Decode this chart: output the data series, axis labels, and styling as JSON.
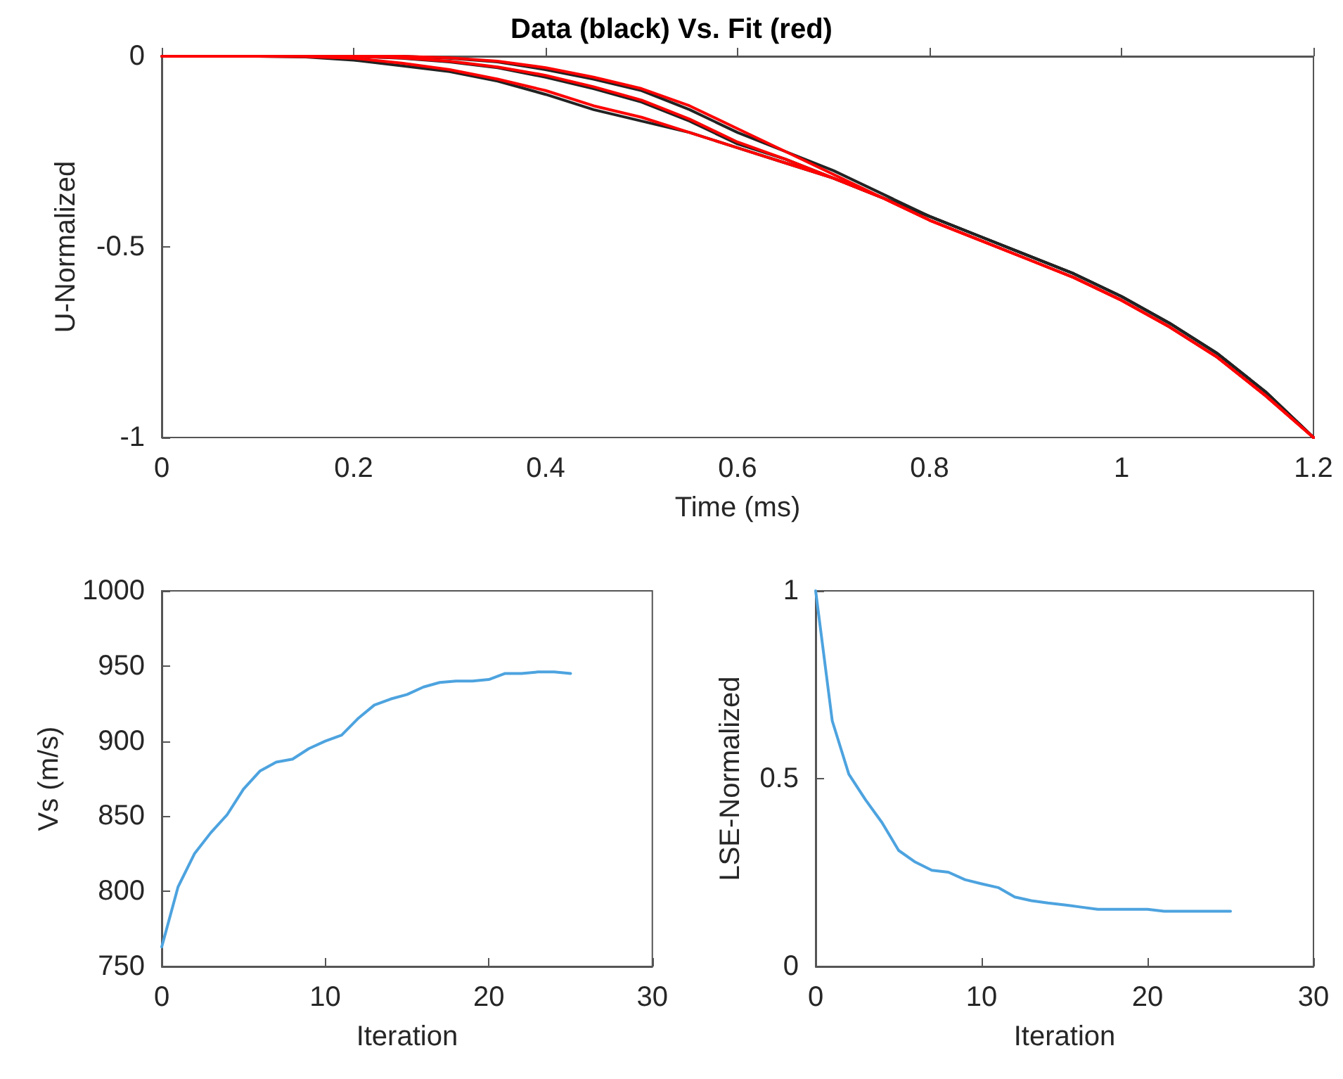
{
  "chart_data": [
    {
      "type": "line",
      "title": "Data (black) Vs. Fit (red)",
      "xlabel": "Time (ms)",
      "ylabel": "U-Normalized",
      "xlim": [
        0,
        1.2
      ],
      "ylim": [
        -1,
        0
      ],
      "xticks": [
        0,
        0.2,
        0.4,
        0.6,
        0.8,
        1,
        1.2
      ],
      "yticks": [
        -1,
        -0.5,
        0
      ],
      "x": [
        0,
        0.05,
        0.1,
        0.15,
        0.2,
        0.25,
        0.3,
        0.35,
        0.4,
        0.45,
        0.5,
        0.55,
        0.6,
        0.65,
        0.7,
        0.75,
        0.8,
        0.85,
        0.9,
        0.95,
        1,
        1.05,
        1.1,
        1.15,
        1.2
      ],
      "series": [
        {
          "color": "#222222",
          "values": [
            0,
            0,
            0,
            0,
            0,
            0,
            -0.005,
            -0.015,
            -0.035,
            -0.06,
            -0.09,
            -0.14,
            -0.2,
            -0.25,
            -0.3,
            -0.36,
            -0.42,
            -0.47,
            -0.52,
            -0.57,
            -0.63,
            -0.7,
            -0.78,
            -0.88,
            -1
          ]
        },
        {
          "color": "#222222",
          "x": [
            0.2,
            0.25,
            0.3,
            0.35,
            0.4,
            0.45,
            0.5,
            0.55,
            0.6,
            0.65,
            0.7,
            0.75,
            0.8,
            0.85,
            0.9,
            0.95,
            1,
            1.05,
            1.1,
            1.15,
            1.2
          ],
          "values": [
            0,
            -0.005,
            -0.015,
            -0.03,
            -0.055,
            -0.085,
            -0.12,
            -0.17,
            -0.23,
            -0.27,
            -0.32,
            -0.37,
            -0.42,
            -0.47,
            -0.52,
            -0.57,
            -0.63,
            -0.7,
            -0.78,
            -0.88,
            -1
          ]
        },
        {
          "color": "#222222",
          "x": [
            0.1,
            0.15,
            0.2,
            0.25,
            0.3,
            0.35,
            0.4,
            0.45,
            0.5,
            0.55,
            0.6,
            0.65,
            0.7,
            0.75,
            0.8,
            0.85,
            0.9,
            0.95,
            1,
            1.05,
            1.1,
            1.15,
            1.2
          ],
          "values": [
            0,
            -0.002,
            -0.01,
            -0.025,
            -0.04,
            -0.065,
            -0.1,
            -0.14,
            -0.17,
            -0.2,
            -0.24,
            -0.28,
            -0.32,
            -0.37,
            -0.42,
            -0.47,
            -0.52,
            -0.57,
            -0.63,
            -0.7,
            -0.78,
            -0.88,
            -1
          ]
        },
        {
          "color": "#ff0000",
          "values": [
            0,
            0,
            0,
            0,
            0,
            0,
            -0.004,
            -0.013,
            -0.03,
            -0.055,
            -0.085,
            -0.13,
            -0.19,
            -0.25,
            -0.31,
            -0.37,
            -0.43,
            -0.48,
            -0.53,
            -0.58,
            -0.64,
            -0.71,
            -0.79,
            -0.89,
            -1
          ]
        },
        {
          "color": "#ff0000",
          "x": [
            0.2,
            0.25,
            0.3,
            0.35,
            0.4,
            0.45,
            0.5,
            0.55,
            0.6,
            0.65,
            0.7,
            0.75,
            0.8,
            0.85,
            0.9,
            0.95,
            1,
            1.05,
            1.1,
            1.15,
            1.2
          ],
          "values": [
            0,
            -0.004,
            -0.013,
            -0.028,
            -0.05,
            -0.08,
            -0.115,
            -0.165,
            -0.225,
            -0.27,
            -0.32,
            -0.37,
            -0.43,
            -0.48,
            -0.53,
            -0.58,
            -0.64,
            -0.71,
            -0.79,
            -0.89,
            -1
          ]
        },
        {
          "color": "#ff0000",
          "x": [
            0.1,
            0.15,
            0.2,
            0.25,
            0.3,
            0.35,
            0.4,
            0.45,
            0.5,
            0.55,
            0.6,
            0.65,
            0.7,
            0.75,
            0.8,
            0.85,
            0.9,
            0.95,
            1,
            1.05,
            1.1,
            1.15,
            1.2
          ],
          "values": [
            0,
            -0.001,
            -0.005,
            -0.018,
            -0.035,
            -0.06,
            -0.09,
            -0.13,
            -0.16,
            -0.2,
            -0.24,
            -0.28,
            -0.32,
            -0.37,
            -0.43,
            -0.48,
            -0.53,
            -0.58,
            -0.64,
            -0.71,
            -0.79,
            -0.89,
            -1
          ]
        }
      ]
    },
    {
      "type": "line",
      "xlabel": "Iteration",
      "ylabel": "Vs (m/s)",
      "xlim": [
        0,
        30
      ],
      "ylim": [
        750,
        1000
      ],
      "xticks": [
        0,
        10,
        20,
        30
      ],
      "yticks": [
        750,
        800,
        850,
        900,
        950,
        1000
      ],
      "x": [
        0,
        1,
        2,
        3,
        4,
        5,
        6,
        7,
        8,
        9,
        10,
        11,
        12,
        13,
        14,
        15,
        16,
        17,
        18,
        19,
        20,
        21,
        22,
        23,
        24,
        25
      ],
      "series": [
        {
          "color": "#4da3df",
          "values": [
            763,
            803,
            825,
            839,
            851,
            868,
            880,
            886,
            888,
            895,
            900,
            904,
            915,
            924,
            928,
            931,
            936,
            939,
            940,
            940,
            941,
            945,
            945,
            946,
            946,
            945
          ]
        }
      ]
    },
    {
      "type": "line",
      "xlabel": "Iteration",
      "ylabel": "LSE-Normalized",
      "xlim": [
        0,
        30
      ],
      "ylim": [
        0,
        1
      ],
      "xticks": [
        0,
        10,
        20,
        30
      ],
      "yticks": [
        0,
        0.5,
        1
      ],
      "x": [
        0,
        1,
        2,
        3,
        4,
        5,
        6,
        7,
        8,
        9,
        10,
        11,
        12,
        13,
        14,
        15,
        16,
        17,
        18,
        19,
        20,
        21,
        22,
        23,
        24,
        25
      ],
      "series": [
        {
          "color": "#4da3df",
          "values": [
            1,
            0.654,
            0.512,
            0.444,
            0.383,
            0.309,
            0.278,
            0.256,
            0.251,
            0.231,
            0.22,
            0.21,
            0.185,
            0.175,
            0.169,
            0.164,
            0.158,
            0.152,
            0.152,
            0.152,
            0.152,
            0.147,
            0.147,
            0.147,
            0.147,
            0.147
          ]
        }
      ]
    }
  ]
}
